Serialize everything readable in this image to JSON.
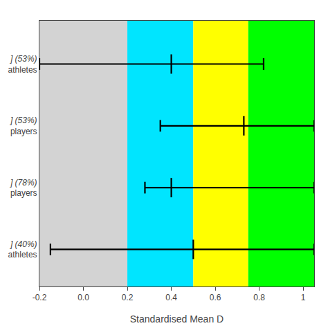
{
  "chart_data": {
    "type": "forest",
    "xlabel": "Standardised Mean D",
    "categories": [
      "] (53%)\nathletes",
      "] (53%)\nplayers",
      "] (78%)\nplayers",
      "] (40%)\nathletes"
    ],
    "values": [
      0.4,
      0.73,
      0.4,
      0.5
    ],
    "ci_lo": [
      -0.2,
      0.35,
      0.28,
      -0.15
    ],
    "ci_hi": [
      0.82,
      1.05,
      1.05,
      1.05
    ],
    "color": "black",
    "marker": "|",
    "xlim": [
      -0.2,
      1.05
    ],
    "xticks": [
      -0.2,
      {
        "value": 0,
        "label": "0.0"
      },
      0.2,
      0.4,
      0.6,
      0.8,
      1
    ],
    "bands": [
      {
        "from": -0.25,
        "to": 0.2,
        "color": "#d3d3d3"
      },
      {
        "from": 0.2,
        "to": 0.5,
        "color": "#00e5ff"
      },
      {
        "from": 0.5,
        "to": 0.75,
        "color": "#ffff00"
      },
      {
        "from": 0.75,
        "to": 1.1,
        "color": "#00ff00"
      }
    ],
    "grid": false
  }
}
